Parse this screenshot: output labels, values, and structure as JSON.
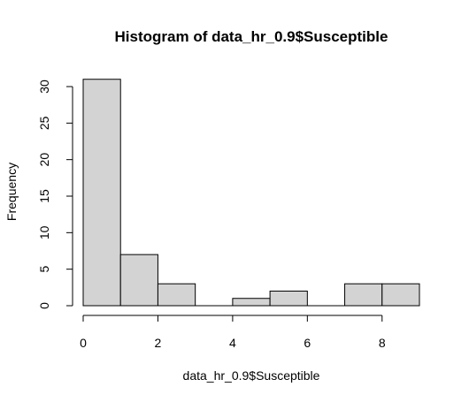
{
  "chart_data": {
    "type": "bar",
    "title": "Histogram of data_hr_0.9$Susceptible",
    "xlabel": "data_hr_0.9$Susceptible",
    "ylabel": "Frequency",
    "bins": [
      {
        "start": 0,
        "end": 1,
        "count": 31
      },
      {
        "start": 1,
        "end": 2,
        "count": 7
      },
      {
        "start": 2,
        "end": 3,
        "count": 3
      },
      {
        "start": 3,
        "end": 4,
        "count": 0
      },
      {
        "start": 4,
        "end": 5,
        "count": 1
      },
      {
        "start": 5,
        "end": 6,
        "count": 2
      },
      {
        "start": 6,
        "end": 7,
        "count": 0
      },
      {
        "start": 7,
        "end": 8,
        "count": 3
      },
      {
        "start": 8,
        "end": 9,
        "count": 3
      }
    ],
    "xlim": [
      0,
      9
    ],
    "ylim": [
      0,
      31
    ],
    "x_ticks": [
      "0",
      "2",
      "4",
      "6",
      "8"
    ],
    "y_ticks": [
      "0",
      "5",
      "10",
      "15",
      "20",
      "25",
      "30"
    ],
    "bar_color": "#d3d3d3",
    "grid": false,
    "legend": "none"
  }
}
